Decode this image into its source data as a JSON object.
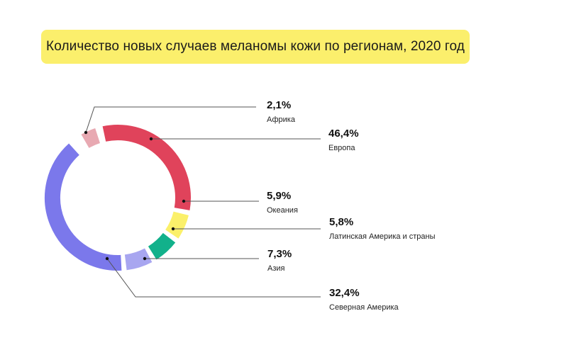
{
  "title": "Количество новых случаев меланомы кожи по регионам, 2020 год",
  "colors": {
    "title_bg": "#fbef6c",
    "africa": "#e8a9b2",
    "europe": "#e0435b",
    "oceania": "#fbf06a",
    "latin_america": "#12b18b",
    "asia": "#a8a6f0",
    "north_america": "#7b78eb",
    "leader_line": "#555555"
  },
  "labels": [
    {
      "pct": "2,1%",
      "name": "Африка"
    },
    {
      "pct": "46,4%",
      "name": "Европа"
    },
    {
      "pct": "5,9%",
      "name": "Океания"
    },
    {
      "pct": "5,8%",
      "name": "Латинская Америка и страны"
    },
    {
      "pct": "7,3%",
      "name": "Азия"
    },
    {
      "pct": "32,4%",
      "name": "Северная Америка"
    }
  ],
  "chart_data": {
    "type": "pie",
    "variant": "donut",
    "title": "Количество новых случаев меланомы кожи по регионам, 2020 год",
    "categories": [
      "Африка",
      "Европа",
      "Океания",
      "Латинская Америка и страны",
      "Азия",
      "Северная Америка"
    ],
    "values": [
      2.1,
      46.4,
      5.9,
      5.8,
      7.3,
      32.4
    ],
    "unit": "%",
    "colors": [
      "#e8a9b2",
      "#e0435b",
      "#fbf06a",
      "#12b18b",
      "#a8a6f0",
      "#7b78eb"
    ],
    "legend": "callout labels to the right with leader lines"
  }
}
